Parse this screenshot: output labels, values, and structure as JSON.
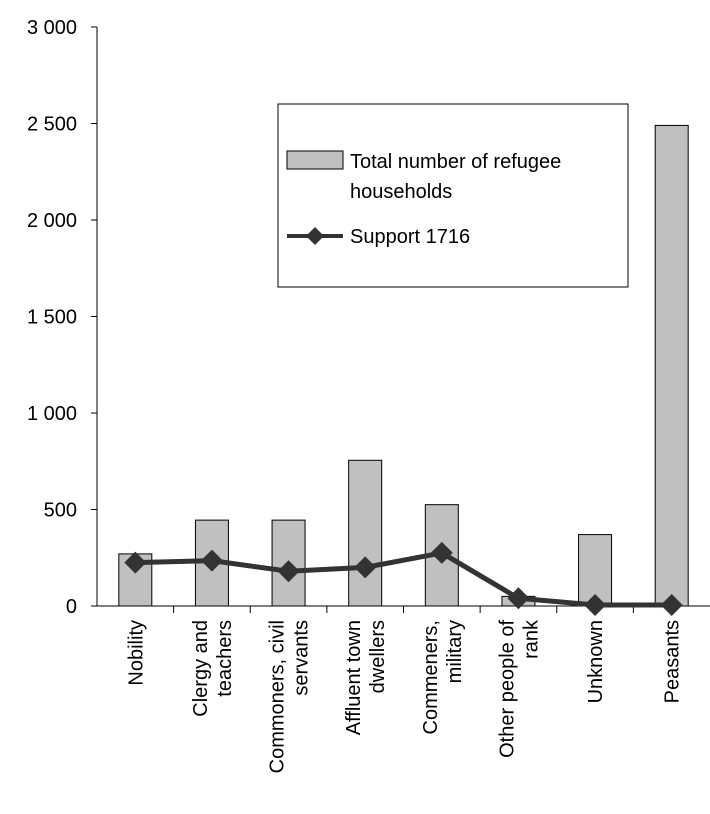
{
  "chart_data": {
    "type": "bar",
    "categories": [
      [
        "Nobility"
      ],
      [
        "Clergy and",
        "teachers"
      ],
      [
        "Commoners, civil",
        "servants"
      ],
      [
        "Affluent town",
        "dwellers"
      ],
      [
        "Commeners,",
        "military"
      ],
      [
        "Other people of",
        "rank"
      ],
      [
        "Unknown"
      ],
      [
        "Peasants"
      ]
    ],
    "series": [
      {
        "name": "Total number of refugee households",
        "kind": "bar",
        "values": [
          270,
          445,
          445,
          755,
          525,
          50,
          370,
          2490
        ]
      },
      {
        "name": "Support 1716",
        "kind": "line",
        "values": [
          225,
          235,
          180,
          200,
          275,
          40,
          5,
          5
        ]
      }
    ],
    "legend_lines": [
      [
        "Total number of refugee",
        "households"
      ],
      [
        "Support 1716"
      ]
    ],
    "y_ticks": [
      "0",
      "500",
      "1 000",
      "1 500",
      "2 000",
      "2 500",
      "3 000"
    ],
    "ylim": [
      0,
      3000
    ],
    "legend_position": "top-right",
    "grid": false,
    "colors": {
      "bar_fill": "#c0c0c0",
      "bar_stroke": "#000000",
      "line": "#333333",
      "marker": "#333333"
    }
  }
}
